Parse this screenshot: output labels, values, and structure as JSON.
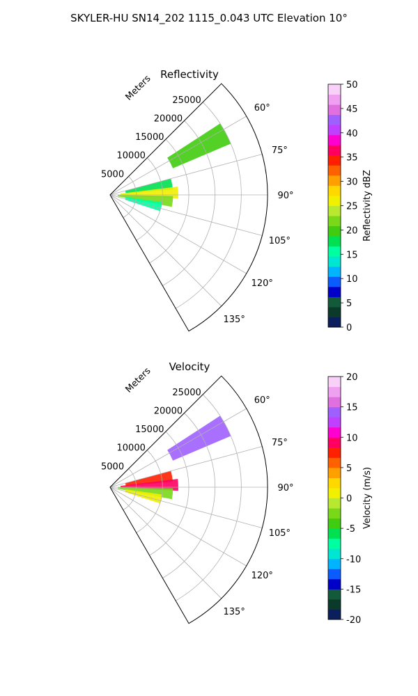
{
  "figure": {
    "title": "SKYLER-HU  SN14_202  1115_0.043 UTC Elevation 10°"
  },
  "chart_data": [
    {
      "type": "heatmap",
      "projection": "polar-sector",
      "title": "Reflectivity",
      "range_label": "Meters",
      "range_ticks": [
        5000,
        10000,
        15000,
        20000,
        25000
      ],
      "range_max": 30000,
      "azimuth_range_deg": [
        45,
        150
      ],
      "azimuth_ticks": [
        "60°",
        "75°",
        "90°",
        "105°",
        "120°",
        "135°"
      ],
      "azimuth_tick_values": [
        60,
        75,
        90,
        105,
        120,
        135
      ],
      "grid": true,
      "colorbar": {
        "label": "Reflectivity dBZ",
        "min": 0,
        "max": 50,
        "ticks": [
          0,
          5,
          10,
          15,
          20,
          25,
          30,
          35,
          40,
          45,
          50
        ],
        "colors": [
          "#0a1f5c",
          "#0b3a2a",
          "#135a3a",
          "#0000c8",
          "#0a5cff",
          "#00b4ff",
          "#00e6d2",
          "#00ffa0",
          "#00e050",
          "#40cc10",
          "#7ad81a",
          "#b8e830",
          "#f0f000",
          "#ffd800",
          "#ffa000",
          "#ff6000",
          "#ff2000",
          "#ff0060",
          "#ff00d0",
          "#c040ff",
          "#a060ff",
          "#e070e0",
          "#f0a0f0",
          "#f8d0f8"
        ]
      },
      "echoes": [
        {
          "az": 62,
          "r0": 13000,
          "r1": 25000,
          "value": 20
        },
        {
          "az": 80,
          "r0": 3000,
          "r1": 12000,
          "value": 18
        },
        {
          "az": 88,
          "r0": 2000,
          "r1": 13000,
          "value": 26
        },
        {
          "az": 96,
          "r0": 1500,
          "r1": 12000,
          "value": 22
        },
        {
          "az": 103,
          "r0": 3000,
          "r1": 10000,
          "value": 16
        }
      ]
    },
    {
      "type": "heatmap",
      "projection": "polar-sector",
      "title": "Velocity",
      "range_label": "Meters",
      "range_ticks": [
        5000,
        10000,
        15000,
        20000,
        25000
      ],
      "range_max": 30000,
      "azimuth_range_deg": [
        45,
        150
      ],
      "azimuth_ticks": [
        "60°",
        "75°",
        "90°",
        "105°",
        "120°",
        "135°"
      ],
      "azimuth_tick_values": [
        60,
        75,
        90,
        105,
        120,
        135
      ],
      "grid": true,
      "colorbar": {
        "label": "Velocity (m/s)",
        "min": -20,
        "max": 20,
        "ticks": [
          -20,
          -15,
          -10,
          -5,
          0,
          5,
          10,
          15,
          20
        ],
        "colors": [
          "#0a1f5c",
          "#0b3a2a",
          "#135a3a",
          "#0000c8",
          "#0a5cff",
          "#00b4ff",
          "#00e6d2",
          "#00ffa0",
          "#00e050",
          "#40cc10",
          "#7ad81a",
          "#b8e830",
          "#f0f000",
          "#ffd800",
          "#ffa000",
          "#ff6000",
          "#ff2000",
          "#ff0060",
          "#ff00d0",
          "#c040ff",
          "#a060ff",
          "#e070e0",
          "#f0a0f0",
          "#f8d0f8"
        ]
      },
      "echoes": [
        {
          "az": 62,
          "r0": 13000,
          "r1": 25000,
          "value": 14
        },
        {
          "az": 80,
          "r0": 3000,
          "r1": 12000,
          "value": 8
        },
        {
          "az": 88,
          "r0": 2000,
          "r1": 13000,
          "value": 9
        },
        {
          "az": 96,
          "r0": 1500,
          "r1": 12000,
          "value": -3
        },
        {
          "az": 103,
          "r0": 3000,
          "r1": 10000,
          "value": 1
        }
      ]
    }
  ]
}
